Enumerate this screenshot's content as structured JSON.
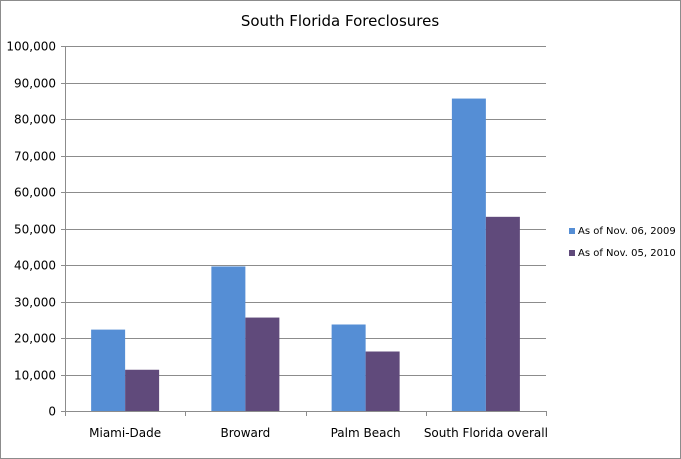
{
  "chart_data": {
    "type": "bar",
    "title": "South Florida Foreclosures",
    "categories": [
      "Miami-Dade",
      "Broward",
      "Palm Beach",
      "South Florida overall"
    ],
    "series": [
      {
        "name": "As of Nov. 06, 2009",
        "color": "#558ed5",
        "values": [
          22300,
          39600,
          23700,
          85600
        ]
      },
      {
        "name": "As of Nov. 05, 2010",
        "color": "#604a7b",
        "values": [
          11300,
          25600,
          16300,
          53200
        ]
      }
    ],
    "ylim": [
      0,
      100000
    ],
    "yticks": [
      0,
      10000,
      20000,
      30000,
      40000,
      50000,
      60000,
      70000,
      80000,
      90000,
      100000
    ],
    "ytick_labels": [
      "0",
      "10,000",
      "20,000",
      "30,000",
      "40,000",
      "50,000",
      "60,000",
      "70,000",
      "80,000",
      "90,000",
      "100,000"
    ],
    "xlabel": "",
    "ylabel": "",
    "grid": true,
    "legend_position": "right"
  },
  "colors": {
    "gridline": "#8c8c8c",
    "axis": "#8c8c8c"
  }
}
